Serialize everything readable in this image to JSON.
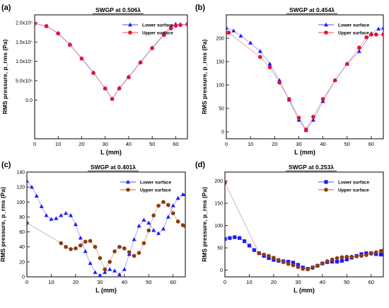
{
  "chart_data": [
    {
      "panel": "(a)",
      "type": "scatter",
      "title": "SWGP at 0.506λ",
      "xlabel": "L (mm)",
      "ylabel": "RMS pressure, p_rms (Pa)",
      "xlim": [
        0,
        65
      ],
      "ylim": [
        -100000,
        220000
      ],
      "xticks": [
        0,
        10,
        20,
        30,
        40,
        50,
        60
      ],
      "yticks": [
        0,
        50000,
        100000,
        150000,
        200000
      ],
      "ytick_labels": [
        "0.0",
        "5.0x10⁴",
        "1.0x10⁵",
        "1.5x10⁵",
        "2.0x10⁵"
      ],
      "legend_position": "top-right",
      "series": [
        {
          "name": "Lower surface",
          "marker": "triangle",
          "color": "#1a1aff",
          "x": [
            0,
            5,
            10,
            15,
            20,
            25,
            30,
            33,
            36,
            40,
            45,
            50,
            55,
            58,
            60,
            62,
            65
          ],
          "y": [
            198000,
            191000,
            173000,
            143000,
            108000,
            71000,
            30000,
            3000,
            31000,
            60000,
            98000,
            135000,
            170000,
            190000,
            196000,
            195000,
            196000
          ]
        },
        {
          "name": "Upper surface",
          "marker": "circle",
          "color": "#e8112d",
          "x": [
            0,
            5,
            10,
            15,
            20,
            25,
            30,
            33,
            36,
            40,
            45,
            50,
            55,
            58,
            60,
            62,
            65
          ],
          "y": [
            198000,
            191000,
            172000,
            143000,
            107000,
            70000,
            30000,
            3000,
            30000,
            59000,
            97000,
            134000,
            168000,
            185000,
            192000,
            194000,
            196000
          ]
        }
      ]
    },
    {
      "panel": "(b)",
      "type": "scatter",
      "title": "SWGP at 0.454λ",
      "xlabel": "L (mm)",
      "ylabel": "RMS pressure, p_rms (Pa)",
      "xlim": [
        0,
        65
      ],
      "ylim": [
        -15,
        250
      ],
      "xticks": [
        0,
        10,
        20,
        30,
        40,
        50,
        60
      ],
      "yticks": [
        0,
        50,
        100,
        150,
        200
      ],
      "legend_position": "top-right",
      "series": [
        {
          "name": "Lower surface",
          "marker": "triangle",
          "color": "#1a1aff",
          "x": [
            0,
            3,
            6,
            10,
            14,
            18,
            22,
            26,
            30,
            33,
            36,
            40,
            45,
            50,
            55,
            60,
            63,
            65
          ],
          "y": [
            222,
            216,
            205,
            190,
            172,
            145,
            110,
            68,
            25,
            3,
            25,
            65,
            110,
            145,
            172,
            210,
            220,
            222
          ]
        },
        {
          "name": "Upper surface",
          "marker": "circle",
          "color": "#e8112d",
          "x": [
            0,
            1,
            14,
            18,
            22,
            26,
            30,
            33,
            36,
            40,
            45,
            50,
            55,
            58,
            60,
            62,
            65
          ],
          "y": [
            212,
            212,
            160,
            138,
            105,
            70,
            30,
            5,
            32,
            70,
            110,
            145,
            180,
            202,
            208,
            208,
            208
          ]
        }
      ]
    },
    {
      "panel": "(c)",
      "type": "scatter",
      "title": "SWGP at 0.401λ",
      "xlabel": "L (mm)",
      "ylabel": "RMS pressure, p_rms (Pa)",
      "xlim": [
        0,
        65
      ],
      "ylim": [
        0,
        140
      ],
      "xticks": [
        0,
        10,
        20,
        30,
        40,
        50,
        60
      ],
      "yticks": [
        0,
        20,
        40,
        60,
        80,
        100,
        120,
        140
      ],
      "legend_position": "top-right",
      "series": [
        {
          "name": "Lower surface",
          "marker": "triangle",
          "color": "#1a1aff",
          "x": [
            0,
            2,
            4,
            6,
            8,
            10,
            12,
            14,
            16,
            18,
            20,
            22,
            24,
            26,
            28,
            30,
            32,
            34,
            36,
            38,
            40,
            42,
            44,
            46,
            48,
            50,
            52,
            54,
            56,
            58,
            60,
            62,
            64,
            65
          ],
          "y": [
            128,
            120,
            108,
            94,
            82,
            77,
            78,
            82,
            85,
            82,
            70,
            52,
            34,
            18,
            6,
            2,
            6,
            10,
            8,
            3,
            10,
            30,
            50,
            68,
            76,
            72,
            62,
            58,
            64,
            80,
            95,
            105,
            110,
            110
          ]
        },
        {
          "name": "Upper surface",
          "marker": "circle",
          "color": "#8b3a14",
          "x": [
            0,
            14,
            16,
            18,
            20,
            22,
            24,
            26,
            28,
            30,
            32,
            34,
            36,
            38,
            40,
            42,
            44,
            46,
            48,
            50,
            52,
            54,
            56,
            58,
            60,
            62,
            64,
            65
          ],
          "y": [
            72,
            45,
            40,
            37,
            38,
            42,
            47,
            48,
            40,
            25,
            10,
            20,
            34,
            40,
            38,
            33,
            28,
            32,
            45,
            62,
            82,
            95,
            100,
            96,
            85,
            74,
            69,
            68
          ]
        }
      ]
    },
    {
      "panel": "(d)",
      "type": "scatter",
      "title": "SWGP at 0.253λ",
      "xlabel": "L (mm)",
      "ylabel": "RMS pressure, p_rms (Pa)",
      "xlim": [
        0,
        65
      ],
      "ylim": [
        -15,
        220
      ],
      "xticks": [
        0,
        10,
        20,
        30,
        40,
        50,
        60
      ],
      "yticks": [
        0,
        50,
        100,
        150,
        200
      ],
      "legend_position": "top-right",
      "series": [
        {
          "name": "Lower surface",
          "marker": "square",
          "color": "#1a1aff",
          "x": [
            0,
            2,
            4,
            6,
            8,
            10,
            12,
            14,
            16,
            18,
            20,
            22,
            24,
            26,
            28,
            30,
            32,
            34,
            36,
            38,
            40,
            42,
            44,
            46,
            48,
            50,
            52,
            54,
            56,
            58,
            60,
            62,
            64,
            65
          ],
          "y": [
            70,
            72,
            74,
            72,
            65,
            55,
            45,
            38,
            32,
            27,
            23,
            21,
            20,
            19,
            17,
            12,
            6,
            3,
            6,
            10,
            15,
            18,
            19,
            19,
            21,
            24,
            28,
            32,
            36,
            38,
            38,
            36,
            35,
            35
          ]
        },
        {
          "name": "Upper surface",
          "marker": "circle",
          "color": "#8b3a14",
          "x": [
            0,
            14,
            16,
            18,
            20,
            22,
            24,
            26,
            28,
            30,
            32,
            34,
            36,
            38,
            40,
            42,
            44,
            46,
            48,
            50,
            52,
            54,
            56,
            58,
            60,
            62,
            64,
            65
          ],
          "y": [
            196,
            38,
            35,
            32,
            28,
            23,
            18,
            14,
            11,
            7,
            3,
            2,
            5,
            10,
            15,
            20,
            24,
            27,
            29,
            30,
            30,
            31,
            32,
            34,
            37,
            40,
            43,
            44
          ]
        }
      ]
    }
  ]
}
